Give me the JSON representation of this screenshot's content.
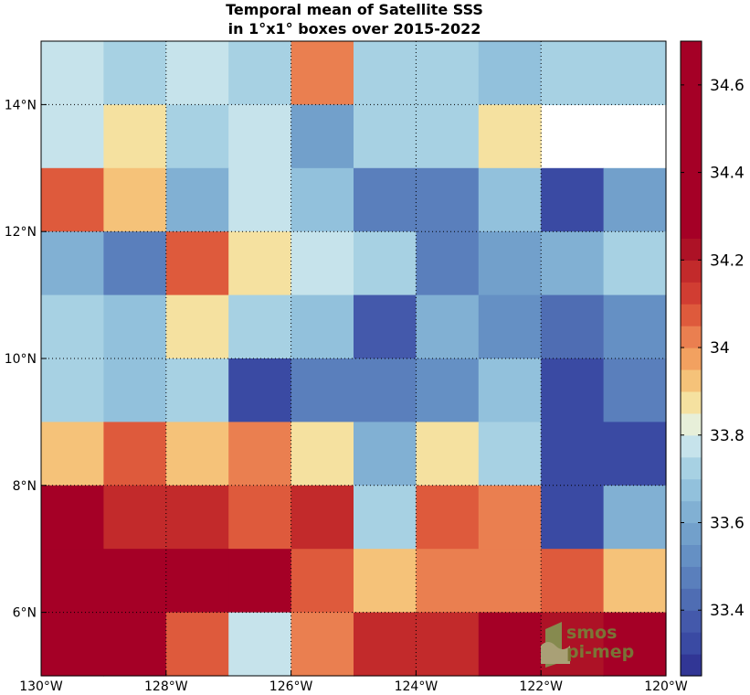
{
  "chart_data": {
    "type": "heatmap",
    "title": [
      "Temporal mean of Satellite SSS",
      "in 1°x1° boxes over 2015-2022"
    ],
    "x_range": [
      -130,
      -120
    ],
    "y_range": [
      5,
      15
    ],
    "x_ticks": [
      {
        "value": -130,
        "label": "130°W"
      },
      {
        "value": -128,
        "label": "128°W"
      },
      {
        "value": -126,
        "label": "126°W"
      },
      {
        "value": -124,
        "label": "124°W"
      },
      {
        "value": -122,
        "label": "122°W"
      },
      {
        "value": -120,
        "label": "120°W"
      }
    ],
    "y_ticks": [
      {
        "value": 6,
        "label": "6°N"
      },
      {
        "value": 8,
        "label": "8°N"
      },
      {
        "value": 10,
        "label": "10°N"
      },
      {
        "value": 12,
        "label": "12°N"
      },
      {
        "value": 14,
        "label": "14°N"
      }
    ],
    "grid": "dotted",
    "lon_centers": [
      -129.5,
      -128.5,
      -127.5,
      -126.5,
      -125.5,
      -124.5,
      -123.5,
      -122.5,
      -121.5,
      -120.5
    ],
    "lat_centers_top_to_bottom": [
      14.5,
      13.5,
      12.5,
      11.5,
      10.5,
      9.5,
      8.5,
      7.5,
      6.5,
      5.5
    ],
    "values": [
      [
        33.775,
        33.725,
        33.775,
        33.725,
        34.025,
        33.725,
        33.725,
        33.675,
        33.725,
        33.725
      ],
      [
        33.775,
        33.875,
        33.725,
        33.775,
        33.575,
        33.725,
        33.725,
        33.875,
        null,
        null
      ],
      [
        34.075,
        33.925,
        33.625,
        33.775,
        33.675,
        33.475,
        33.475,
        33.675,
        33.325,
        33.575
      ],
      [
        33.625,
        33.475,
        34.075,
        33.875,
        33.775,
        33.725,
        33.475,
        33.575,
        33.625,
        33.725
      ],
      [
        33.725,
        33.675,
        33.875,
        33.725,
        33.675,
        33.375,
        33.625,
        33.525,
        33.425,
        33.525
      ],
      [
        33.725,
        33.675,
        33.725,
        33.325,
        33.475,
        33.475,
        33.525,
        33.675,
        33.325,
        33.475
      ],
      [
        33.925,
        34.075,
        33.925,
        34.025,
        33.875,
        33.625,
        33.875,
        33.725,
        33.325,
        33.325
      ],
      [
        34.375,
        34.175,
        34.175,
        34.075,
        34.175,
        33.725,
        34.075,
        34.025,
        33.325,
        33.625
      ],
      [
        34.575,
        34.575,
        34.525,
        34.475,
        34.075,
        33.925,
        34.025,
        34.025,
        34.075,
        33.925
      ],
      [
        34.525,
        34.575,
        34.075,
        33.775,
        34.025,
        34.175,
        34.175,
        34.375,
        34.225,
        34.375
      ]
    ],
    "colorbar": {
      "min": 33.25,
      "max": 34.7,
      "step": 0.05,
      "colors": [
        "#313695",
        "#3a4aa3",
        "#4459ab",
        "#4f6db3",
        "#5a7fbc",
        "#6590c4",
        "#72a0cb",
        "#81b0d3",
        "#92c1dc",
        "#a7d1e3",
        "#c6e3eb",
        "#e7efd9",
        "#f5e1a0",
        "#f5c279",
        "#f2a160",
        "#ea7f50",
        "#de5a3c",
        "#d13d32",
        "#c22a2b",
        "#ad1226",
        "#a50026"
      ],
      "ticks": [
        {
          "value": 33.4,
          "label": "33.4"
        },
        {
          "value": 33.6,
          "label": "33.6"
        },
        {
          "value": 33.8,
          "label": "33.8"
        },
        {
          "value": 34.0,
          "label": "34"
        },
        {
          "value": 34.2,
          "label": "34.2"
        },
        {
          "value": 34.4,
          "label": "34.4"
        },
        {
          "value": 34.6,
          "label": "34.6"
        }
      ]
    }
  },
  "logo": {
    "line1": "smos",
    "line2": "pi-mep"
  }
}
